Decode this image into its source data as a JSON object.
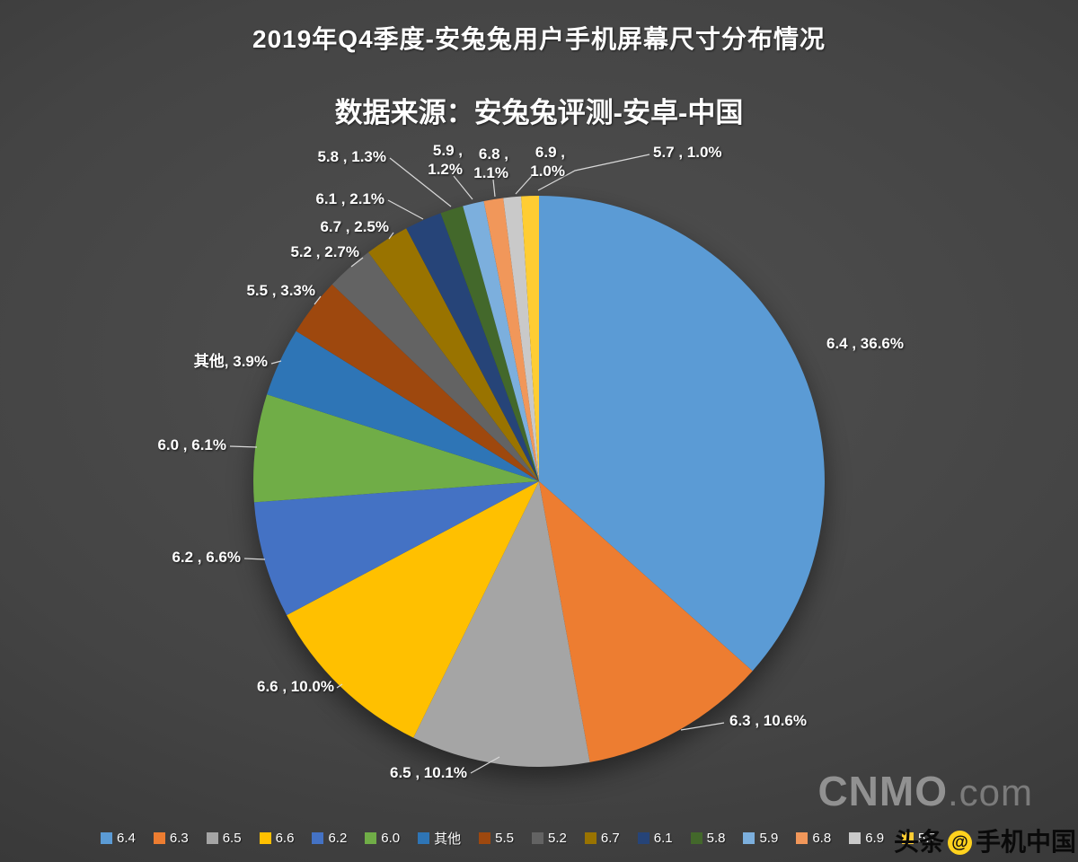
{
  "chart_data": {
    "type": "pie",
    "title": "2019年Q4季度-安兔兔用户手机屏幕尺寸分布情况",
    "subtitle": "数据来源：安兔兔评测-安卓-中国",
    "legend_position": "bottom",
    "slices": [
      {
        "label": "6.4",
        "value": 36.6,
        "display": "6.4 , 36.6%",
        "color": "#5B9BD5"
      },
      {
        "label": "6.3",
        "value": 10.6,
        "display": "6.3 , 10.6%",
        "color": "#ED7D31"
      },
      {
        "label": "6.5",
        "value": 10.1,
        "display": "6.5 , 10.1%",
        "color": "#A5A5A5"
      },
      {
        "label": "6.6",
        "value": 10.0,
        "display": "6.6 , 10.0%",
        "color": "#FFC000"
      },
      {
        "label": "6.2",
        "value": 6.6,
        "display": "6.2 , 6.6%",
        "color": "#4472C4"
      },
      {
        "label": "6.0",
        "value": 6.1,
        "display": "6.0 , 6.1%",
        "color": "#70AD47"
      },
      {
        "label": "其他",
        "value": 3.9,
        "display": "其他, 3.9%",
        "color": "#2E75B6"
      },
      {
        "label": "5.5",
        "value": 3.3,
        "display": "5.5 , 3.3%",
        "color": "#9E480E"
      },
      {
        "label": "5.2",
        "value": 2.7,
        "display": "5.2 , 2.7%",
        "color": "#636363"
      },
      {
        "label": "6.7",
        "value": 2.5,
        "display": "6.7 , 2.5%",
        "color": "#997300"
      },
      {
        "label": "6.1",
        "value": 2.1,
        "display": "6.1 , 2.1%",
        "color": "#264478"
      },
      {
        "label": "5.8",
        "value": 1.3,
        "display": "5.8 , 1.3%",
        "color": "#43682B"
      },
      {
        "label": "5.9",
        "value": 1.2,
        "display": "5.9 , 1.2%",
        "color": "#7CAFDD"
      },
      {
        "label": "6.8",
        "value": 1.1,
        "display": "6.8 , 1.1%",
        "color": "#F1975A"
      },
      {
        "label": "6.9",
        "value": 1.0,
        "display": "6.9 , 1.0%",
        "color": "#C9C9C9"
      },
      {
        "label": "5.7",
        "value": 1.0,
        "display": "5.7 , 1.0%",
        "color": "#FFCD33"
      }
    ]
  },
  "watermarks": {
    "cnmo_bold": "CNMO",
    "cnmo_light": ".com",
    "toutiao_prefix": "头条",
    "toutiao_at": "@",
    "toutiao_suffix": "手机中国"
  }
}
